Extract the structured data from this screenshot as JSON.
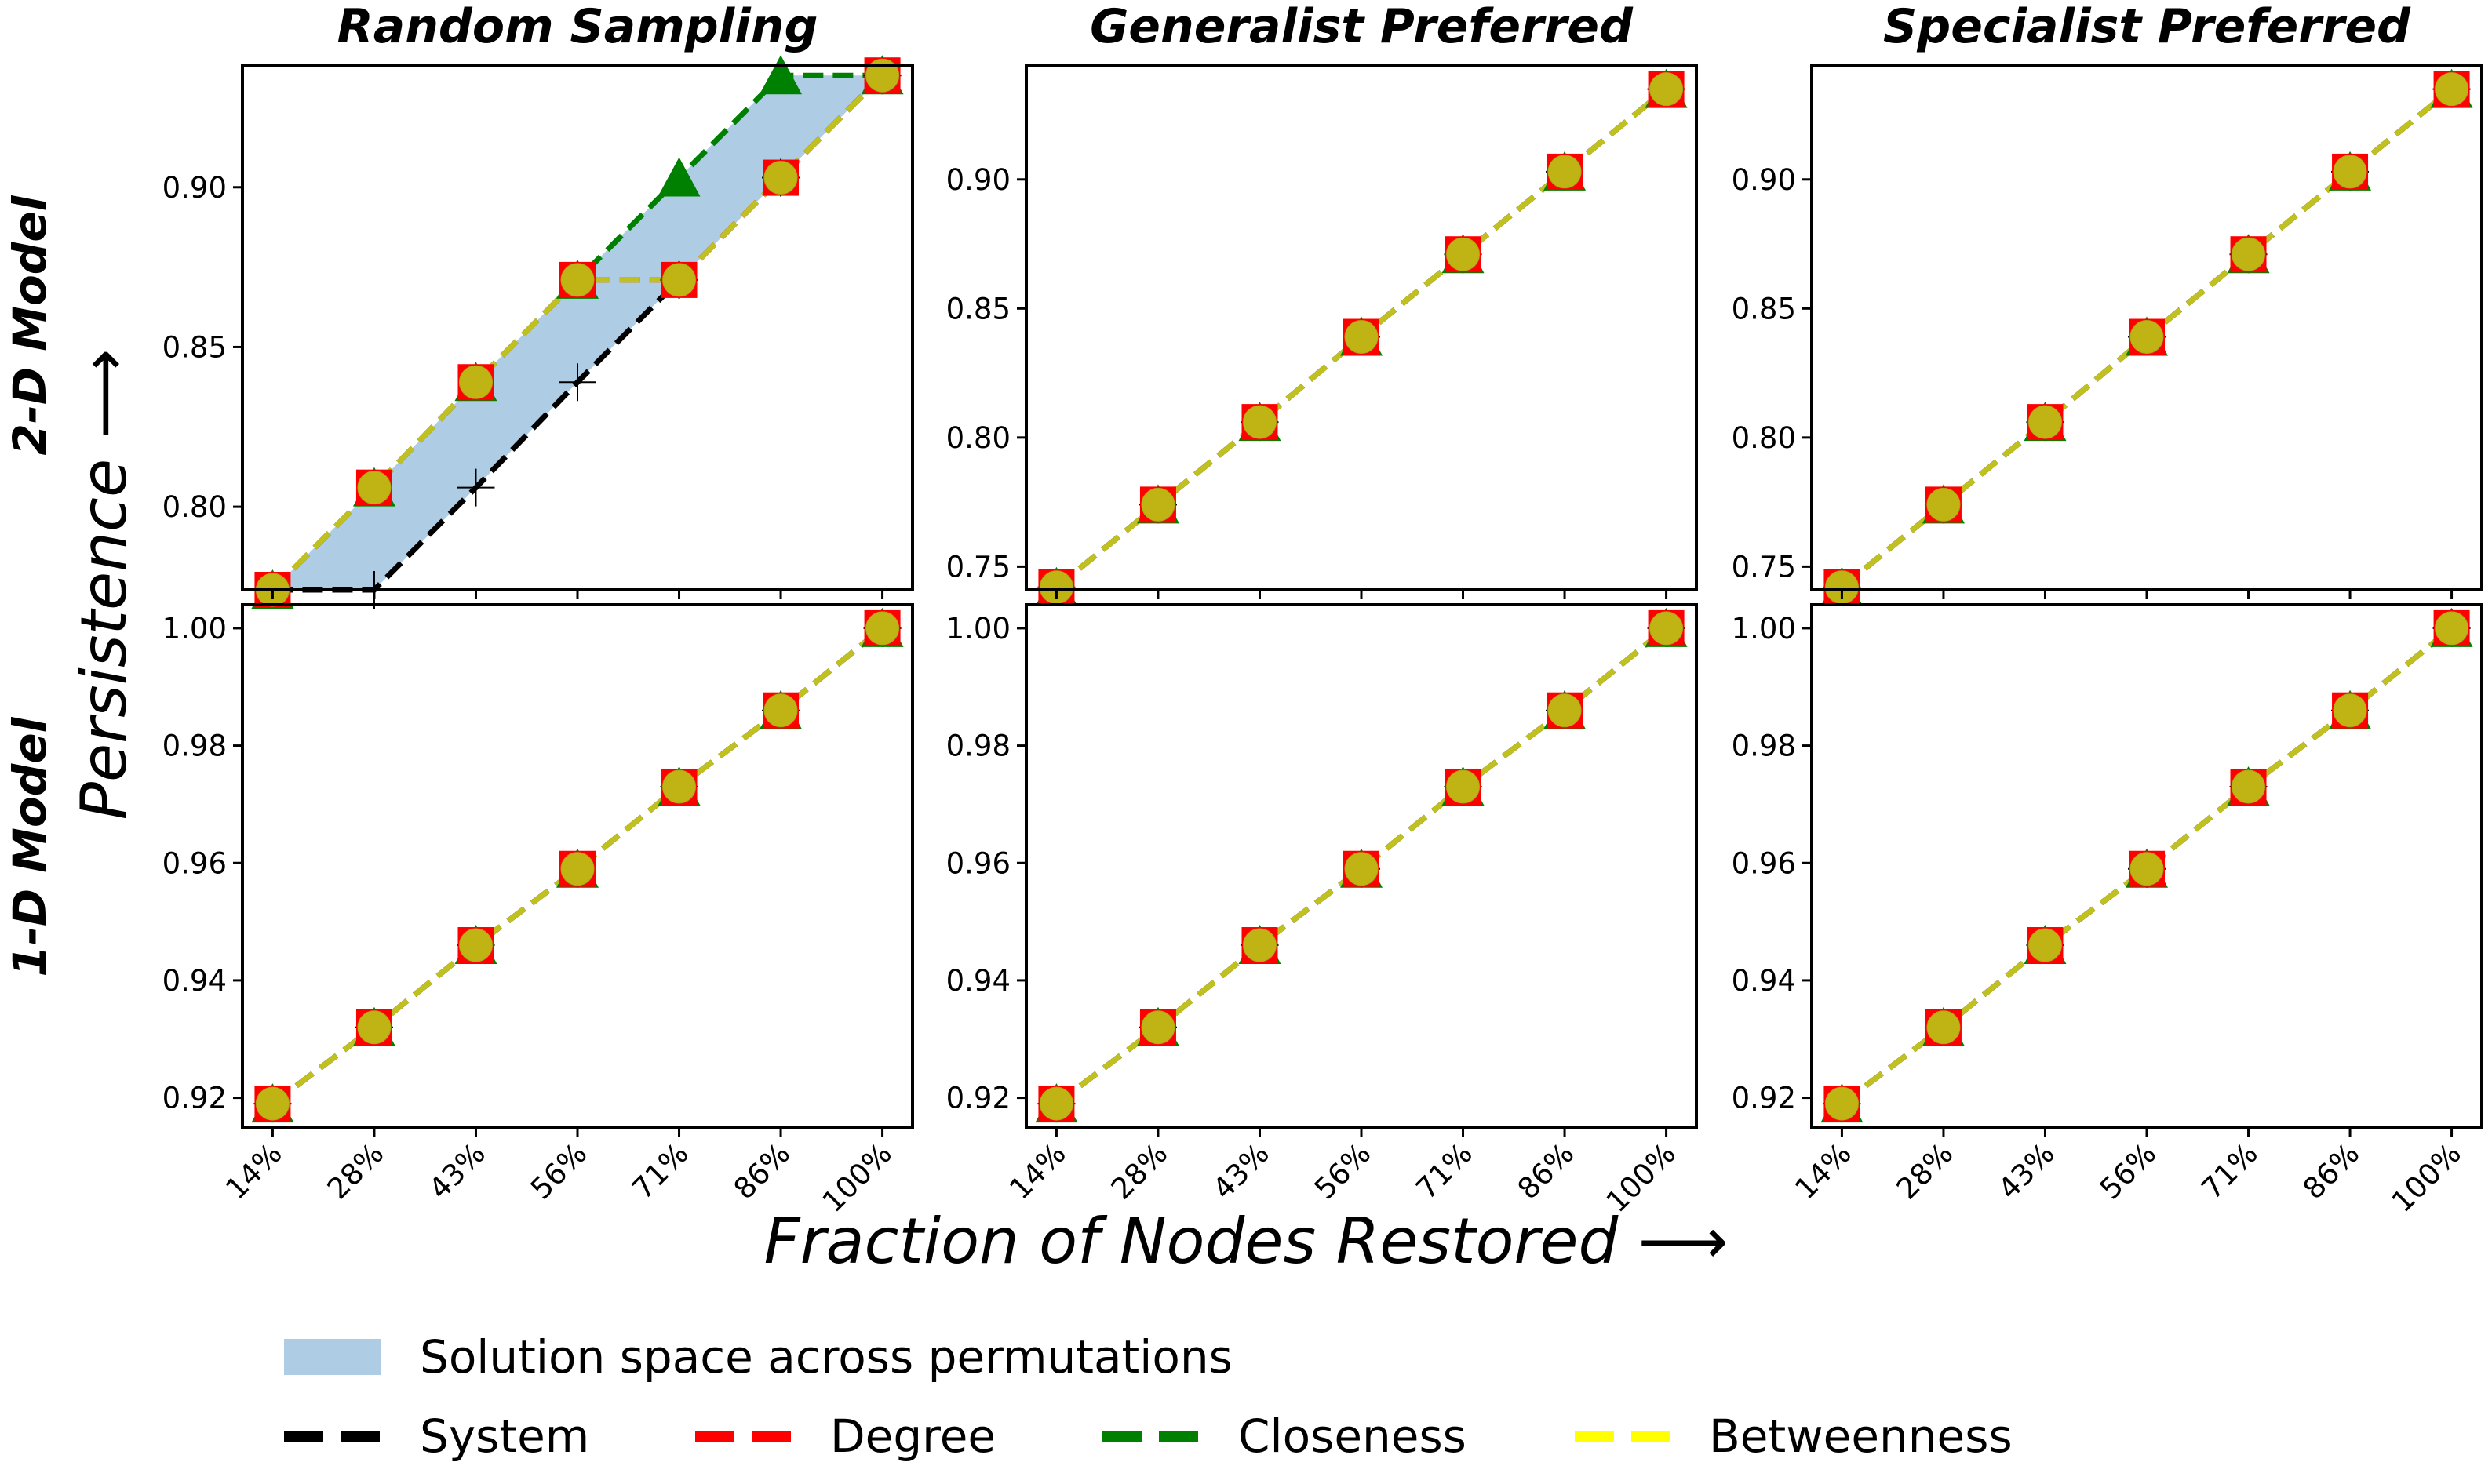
{
  "figure": {
    "xlabel": "Fraction of Nodes Restored  ⟶",
    "ylabel": "Persistence  ⟶",
    "row_labels": [
      "2-D Model",
      "1-D Model"
    ]
  },
  "legend": {
    "placement": "bottom",
    "band_label": "Solution space across permutations",
    "band_color": "#aecde5",
    "entries": [
      {
        "label": "System",
        "color": "#000000"
      },
      {
        "label": "Degree",
        "color": "#ff0000"
      },
      {
        "label": "Closeness",
        "color": "#008000"
      },
      {
        "label": "Betweenness",
        "color": "#ffff00"
      }
    ]
  },
  "chart_data": [
    {
      "type": "line",
      "title": "Random Sampling",
      "row": 0,
      "col": 0,
      "categories": [
        "14%",
        "28%",
        "43%",
        "56%",
        "71%",
        "86%",
        "100%"
      ],
      "ylim": [
        0.774,
        0.938
      ],
      "yticks": [
        0.8,
        0.85,
        0.9
      ],
      "tick_format": "2",
      "band": {
        "lower": [
          0.774,
          0.774,
          0.806,
          0.839,
          0.871,
          0.903,
          0.935
        ],
        "upper": [
          0.774,
          0.806,
          0.839,
          0.871,
          0.903,
          0.935,
          0.935
        ]
      },
      "series": [
        {
          "name": "System",
          "values": [
            0.774,
            0.774,
            0.806,
            0.839,
            0.871,
            0.903,
            0.935
          ]
        },
        {
          "name": "Degree",
          "values": [
            0.774,
            0.806,
            0.839,
            0.871,
            0.871,
            0.903,
            0.935
          ]
        },
        {
          "name": "Closeness",
          "values": [
            0.774,
            0.806,
            0.839,
            0.871,
            0.903,
            0.935,
            0.935
          ]
        },
        {
          "name": "Betweenness",
          "values": [
            0.774,
            0.806,
            0.839,
            0.871,
            0.871,
            0.903,
            0.935
          ]
        }
      ]
    },
    {
      "type": "line",
      "title": "Generalist Preferred",
      "row": 0,
      "col": 1,
      "categories": [
        "14%",
        "28%",
        "43%",
        "56%",
        "71%",
        "86%",
        "100%"
      ],
      "ylim": [
        0.741,
        0.944
      ],
      "yticks": [
        0.75,
        0.8,
        0.85,
        0.9
      ],
      "tick_format": "2",
      "series": [
        {
          "name": "System",
          "values": [
            0.742,
            0.774,
            0.806,
            0.839,
            0.871,
            0.903,
            0.935
          ]
        },
        {
          "name": "Degree",
          "values": [
            0.742,
            0.774,
            0.806,
            0.839,
            0.871,
            0.903,
            0.935
          ]
        },
        {
          "name": "Closeness",
          "values": [
            0.742,
            0.774,
            0.806,
            0.839,
            0.871,
            0.903,
            0.935
          ]
        },
        {
          "name": "Betweenness",
          "values": [
            0.742,
            0.774,
            0.806,
            0.839,
            0.871,
            0.903,
            0.935
          ]
        }
      ]
    },
    {
      "type": "line",
      "title": "Specialist Preferred",
      "row": 0,
      "col": 2,
      "categories": [
        "14%",
        "28%",
        "43%",
        "56%",
        "71%",
        "86%",
        "100%"
      ],
      "ylim": [
        0.741,
        0.944
      ],
      "yticks": [
        0.75,
        0.8,
        0.85,
        0.9
      ],
      "tick_format": "2",
      "series": [
        {
          "name": "System",
          "values": [
            0.742,
            0.774,
            0.806,
            0.839,
            0.871,
            0.903,
            0.935
          ]
        },
        {
          "name": "Degree",
          "values": [
            0.742,
            0.774,
            0.806,
            0.839,
            0.871,
            0.903,
            0.935
          ]
        },
        {
          "name": "Closeness",
          "values": [
            0.742,
            0.774,
            0.806,
            0.839,
            0.871,
            0.903,
            0.935
          ]
        },
        {
          "name": "Betweenness",
          "values": [
            0.742,
            0.774,
            0.806,
            0.839,
            0.871,
            0.903,
            0.935
          ]
        }
      ]
    },
    {
      "type": "line",
      "title": "",
      "row": 1,
      "col": 0,
      "categories": [
        "14%",
        "28%",
        "43%",
        "56%",
        "71%",
        "86%",
        "100%"
      ],
      "ylim": [
        0.915,
        1.004
      ],
      "yticks": [
        0.92,
        0.94,
        0.96,
        0.98,
        1.0
      ],
      "tick_format": "2",
      "series": [
        {
          "name": "System",
          "values": [
            0.919,
            0.932,
            0.946,
            0.959,
            0.973,
            0.986,
            1.0
          ]
        },
        {
          "name": "Degree",
          "values": [
            0.919,
            0.932,
            0.946,
            0.959,
            0.973,
            0.986,
            1.0
          ]
        },
        {
          "name": "Closeness",
          "values": [
            0.919,
            0.932,
            0.946,
            0.959,
            0.973,
            0.986,
            1.0
          ]
        },
        {
          "name": "Betweenness",
          "values": [
            0.919,
            0.932,
            0.946,
            0.959,
            0.973,
            0.986,
            1.0
          ]
        }
      ]
    },
    {
      "type": "line",
      "title": "",
      "row": 1,
      "col": 1,
      "categories": [
        "14%",
        "28%",
        "43%",
        "56%",
        "71%",
        "86%",
        "100%"
      ],
      "ylim": [
        0.915,
        1.004
      ],
      "yticks": [
        0.92,
        0.94,
        0.96,
        0.98,
        1.0
      ],
      "tick_format": "2",
      "series": [
        {
          "name": "System",
          "values": [
            0.919,
            0.932,
            0.946,
            0.959,
            0.973,
            0.986,
            1.0
          ]
        },
        {
          "name": "Degree",
          "values": [
            0.919,
            0.932,
            0.946,
            0.959,
            0.973,
            0.986,
            1.0
          ]
        },
        {
          "name": "Closeness",
          "values": [
            0.919,
            0.932,
            0.946,
            0.959,
            0.973,
            0.986,
            1.0
          ]
        },
        {
          "name": "Betweenness",
          "values": [
            0.919,
            0.932,
            0.946,
            0.959,
            0.973,
            0.986,
            1.0
          ]
        }
      ]
    },
    {
      "type": "line",
      "title": "",
      "row": 1,
      "col": 2,
      "categories": [
        "14%",
        "28%",
        "43%",
        "56%",
        "71%",
        "86%",
        "100%"
      ],
      "ylim": [
        0.915,
        1.004
      ],
      "yticks": [
        0.92,
        0.94,
        0.96,
        0.98,
        1.0
      ],
      "tick_format": "2",
      "series": [
        {
          "name": "System",
          "values": [
            0.919,
            0.932,
            0.946,
            0.959,
            0.973,
            0.986,
            1.0
          ]
        },
        {
          "name": "Degree",
          "values": [
            0.919,
            0.932,
            0.946,
            0.959,
            0.973,
            0.986,
            1.0
          ]
        },
        {
          "name": "Closeness",
          "values": [
            0.919,
            0.932,
            0.946,
            0.959,
            0.973,
            0.986,
            1.0
          ]
        },
        {
          "name": "Betweenness",
          "values": [
            0.919,
            0.932,
            0.946,
            0.959,
            0.973,
            0.986,
            1.0
          ]
        }
      ]
    }
  ]
}
